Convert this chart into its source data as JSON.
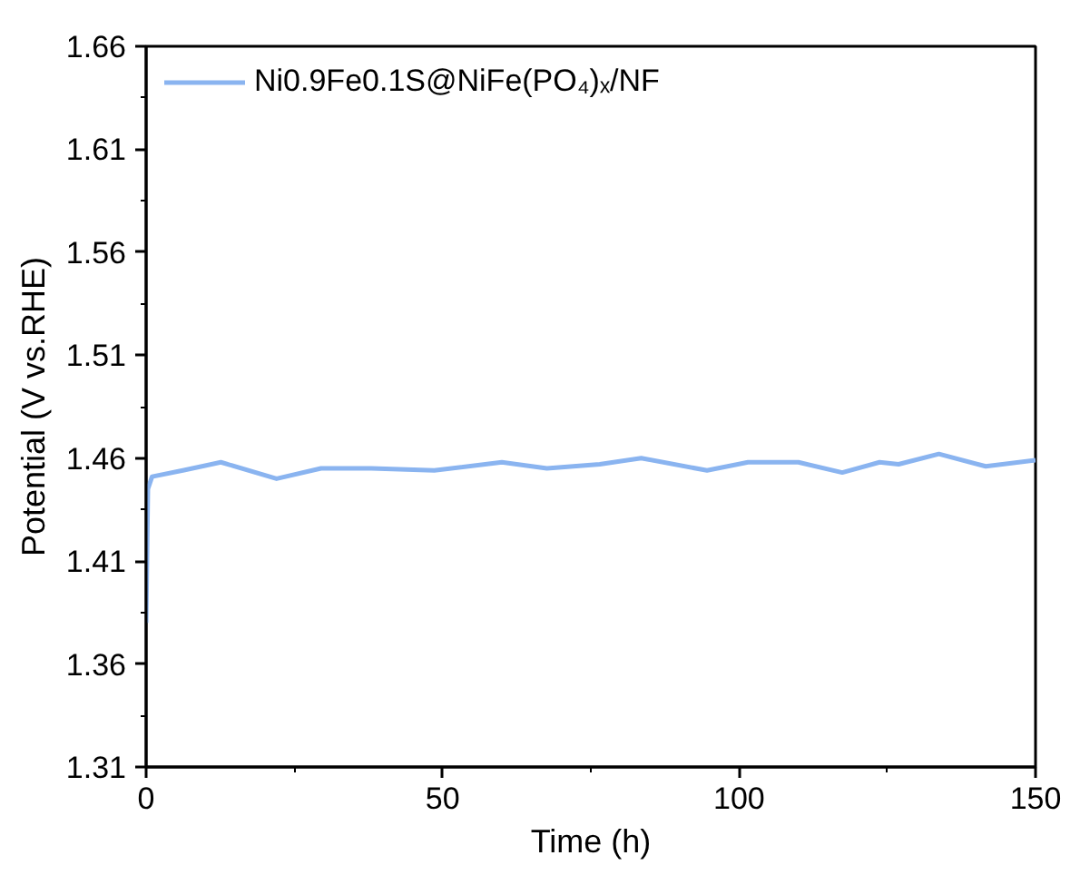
{
  "chart_data": {
    "type": "line",
    "xlabel": "Time (h)",
    "ylabel": "Potential (V vs.RHE)",
    "x": [
      0,
      0.3,
      1,
      6.2,
      12.6,
      22,
      29.5,
      38,
      48.6,
      60,
      67.6,
      76.5,
      83.5,
      94.6,
      101.5,
      110,
      117.4,
      123.7,
      126.9,
      133.7,
      141.6,
      150
    ],
    "series": [
      {
        "name": "Ni0.9Fe0.1S@NiFe(PO₄)ₓ/NF",
        "color": "#8ab4f0",
        "values": [
          1.38,
          1.445,
          1.451,
          1.454,
          1.458,
          1.45,
          1.455,
          1.455,
          1.454,
          1.458,
          1.455,
          1.457,
          1.46,
          1.454,
          1.458,
          1.458,
          1.453,
          1.458,
          1.457,
          1.462,
          1.456,
          1.459
        ]
      }
    ],
    "xlim": [
      0,
      150
    ],
    "ylim": [
      1.31,
      1.66
    ],
    "xticks": [
      0,
      50,
      100,
      150
    ],
    "yticks": [
      1.31,
      1.36,
      1.41,
      1.46,
      1.51,
      1.56,
      1.61,
      1.66
    ],
    "grid": false,
    "legend": "top left",
    "line_style": "solid"
  }
}
